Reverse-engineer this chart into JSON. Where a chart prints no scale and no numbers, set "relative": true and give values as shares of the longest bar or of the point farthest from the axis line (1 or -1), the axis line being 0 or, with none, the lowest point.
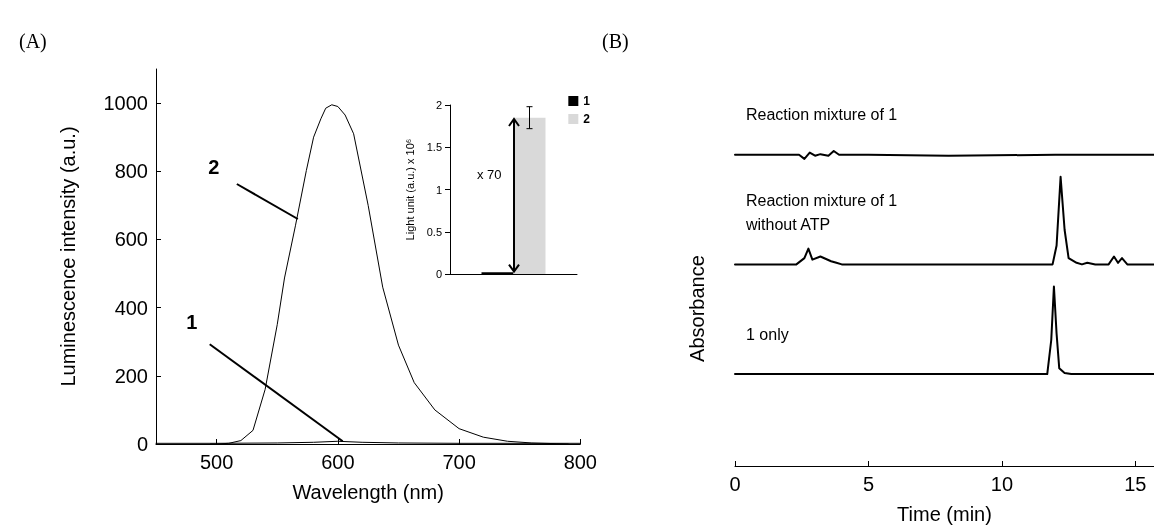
{
  "chart_data": [
    {
      "type": "line",
      "title": "(A)",
      "xlabel": "Wavelength (nm)",
      "ylabel": "Luminescence intensity (a.u.)",
      "xlim": [
        450,
        800
      ],
      "xticks": [
        500,
        600,
        700,
        800
      ],
      "ylim": [
        0,
        1100
      ],
      "yticks": [
        0,
        200,
        400,
        600,
        800,
        1000
      ],
      "grid": false,
      "legend": false,
      "marker": "none",
      "line_style": "solid",
      "annotations": [
        {
          "text": "2",
          "x": 567,
          "y": 660
        },
        {
          "text": "1",
          "x": 604,
          "y": 8
        }
      ],
      "series": [
        {
          "color": "#000000",
          "x": [
            495,
            500,
            510,
            520,
            530,
            540,
            550,
            556,
            565,
            574,
            580,
            586,
            590,
            595,
            600,
            606,
            613,
            625,
            637,
            650,
            663,
            680,
            700,
            720,
            740,
            760,
            780,
            790
          ],
          "values": [
            0,
            0,
            2,
            10,
            40,
            160,
            350,
            487,
            640,
            802,
            900,
            954,
            985,
            995,
            990,
            965,
            910,
            700,
            460,
            290,
            180,
            100,
            45,
            20,
            8,
            3,
            1,
            0
          ]
        },
        {
          "color": "#000000",
          "x": [
            450,
            500,
            550,
            580,
            600,
            620,
            650,
            700,
            800
          ],
          "values": [
            2,
            2,
            3,
            5,
            8,
            5,
            3,
            2,
            2
          ]
        }
      ]
    },
    {
      "type": "bar",
      "ylabel": "Light unit (a.u.) x 10⁶",
      "categories": [
        null
      ],
      "ylim": [
        0,
        2
      ],
      "yticks": [
        0,
        0.5,
        1,
        1.5,
        2
      ],
      "grid": false,
      "legend": "top right",
      "annotations": [
        "x 70"
      ],
      "series": [
        {
          "name": "1",
          "color": "#000000",
          "values": [
            0.02
          ]
        },
        {
          "name": "2",
          "color": "#d9d9d9",
          "values": [
            1.85
          ],
          "errors": [
            [
              1.72,
              1.98
            ]
          ]
        }
      ]
    },
    {
      "type": "line",
      "title": "(B)",
      "xlabel": "Time (min)",
      "ylabel": "Absorbance",
      "relative": true,
      "xlim": [
        0,
        15.7
      ],
      "xticks": [
        0,
        5,
        10,
        15
      ],
      "grid": false,
      "legend": false,
      "marker": "none",
      "line_style": "solid",
      "series": [
        {
          "name": "Reaction mixture of 1",
          "color": "#000000",
          "x": [
            0,
            2.4,
            2.6,
            2.8,
            3.0,
            3.2,
            3.5,
            3.7,
            3.9,
            5,
            8,
            12,
            15.7
          ],
          "values": [
            0.988,
            0.988,
            0.975,
            0.995,
            0.985,
            0.99,
            0.985,
            1.0,
            0.988,
            0.988,
            0.985,
            0.988,
            0.988
          ]
        },
        {
          "name": "Reaction mixture of 1\nwithout ATP",
          "color": "#000000",
          "x": [
            0,
            2.3,
            2.6,
            2.75,
            2.9,
            3.2,
            3.6,
            3.8,
            4.0,
            11.9,
            12.05,
            12.2,
            12.35,
            12.5,
            12.8,
            13.0,
            13.2,
            13.5,
            14.0,
            14.2,
            14.35,
            14.5,
            14.7,
            15.7
          ],
          "values": [
            0.64,
            0.64,
            0.66,
            0.69,
            0.655,
            0.665,
            0.65,
            0.645,
            0.64,
            0.64,
            0.7,
            0.918,
            0.75,
            0.66,
            0.645,
            0.64,
            0.645,
            0.64,
            0.64,
            0.665,
            0.645,
            0.66,
            0.64,
            0.64
          ]
        },
        {
          "name": "1 only",
          "color": "#000000",
          "x": [
            0,
            11.7,
            11.85,
            11.95,
            12.05,
            12.15,
            12.35,
            12.6,
            15.7
          ],
          "values": [
            0.292,
            0.292,
            0.4,
            0.57,
            0.42,
            0.31,
            0.295,
            0.292,
            0.292
          ]
        }
      ]
    }
  ]
}
